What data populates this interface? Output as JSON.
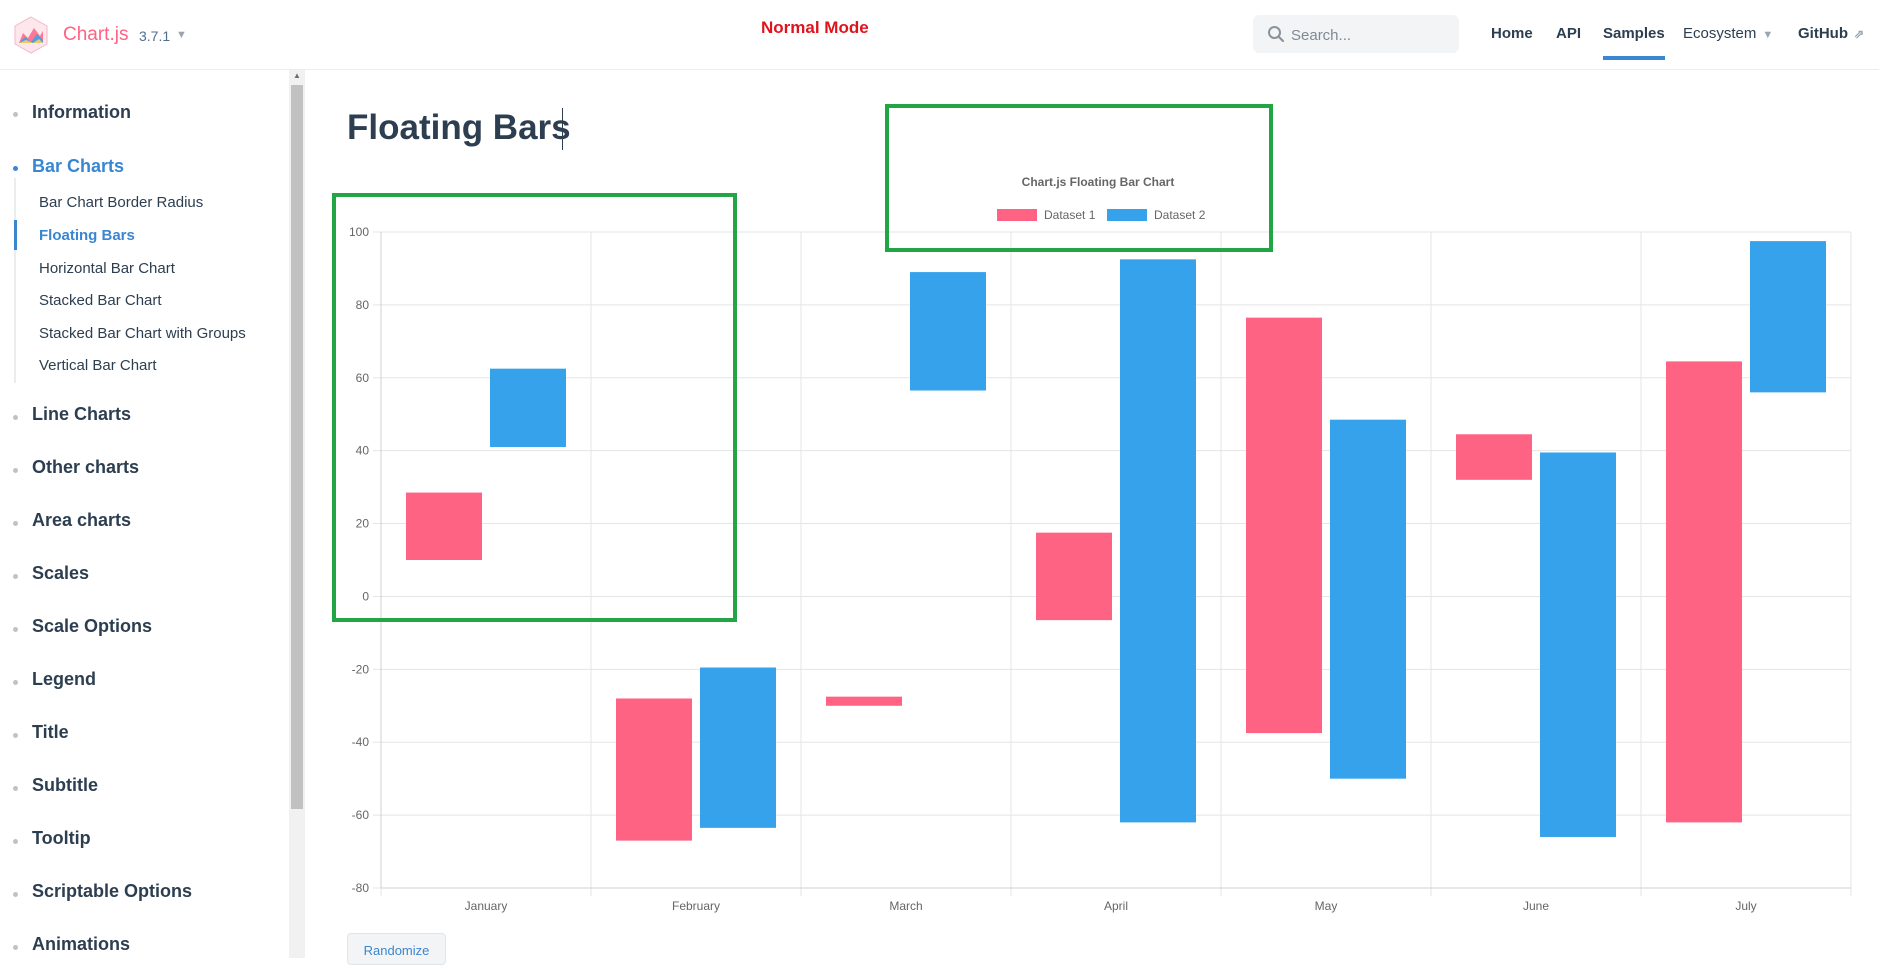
{
  "navbar": {
    "brand": "Chart.js",
    "version": "3.7.1",
    "mode_label": "Normal Mode",
    "search_placeholder": "Search...",
    "links": [
      "Home",
      "API",
      "Samples",
      "Ecosystem",
      "GitHub"
    ],
    "active_link": "Samples"
  },
  "sidebar": {
    "sections": [
      "Information",
      "Bar Charts",
      "Line Charts",
      "Other charts",
      "Area charts",
      "Scales",
      "Scale Options",
      "Legend",
      "Title",
      "Subtitle",
      "Tooltip",
      "Scriptable Options",
      "Animations"
    ],
    "active_section": "Bar Charts",
    "bar_chart_items": [
      "Bar Chart Border Radius",
      "Floating Bars",
      "Horizontal Bar Chart",
      "Stacked Bar Chart",
      "Stacked Bar Chart with Groups",
      "Vertical Bar Chart"
    ],
    "active_item": "Floating Bars"
  },
  "page": {
    "title": "Floating Bars",
    "randomize_label": "Randomize"
  },
  "colors": {
    "dataset1": "#ff6384",
    "dataset2": "#36a2eb",
    "highlight": "#22a545",
    "accent": "#3a86d1",
    "mode_label": "#e0141e"
  },
  "chart_data": {
    "type": "bar",
    "title": "Chart.js Floating Bar Chart",
    "categories": [
      "January",
      "February",
      "March",
      "April",
      "May",
      "June",
      "July"
    ],
    "series": [
      {
        "name": "Dataset 1",
        "ranges": [
          [
            10,
            28.5
          ],
          [
            -67,
            -28
          ],
          [
            -30,
            -27.5
          ],
          [
            -6.5,
            17.5
          ],
          [
            -37.5,
            76.5
          ],
          [
            32,
            44.5
          ],
          [
            -62,
            64.5
          ]
        ]
      },
      {
        "name": "Dataset 2",
        "ranges": [
          [
            41,
            62.5
          ],
          [
            -63.5,
            -19.5
          ],
          [
            56.5,
            89
          ],
          [
            -62,
            92.5
          ],
          [
            -50,
            48.5
          ],
          [
            -66,
            39.5
          ],
          [
            56,
            97.5
          ]
        ]
      }
    ],
    "yticks": [
      100,
      80,
      60,
      40,
      20,
      0,
      -20,
      -40,
      -60,
      -80
    ],
    "ylim": [
      -80,
      100
    ],
    "legend_position": "top",
    "grid": true
  }
}
